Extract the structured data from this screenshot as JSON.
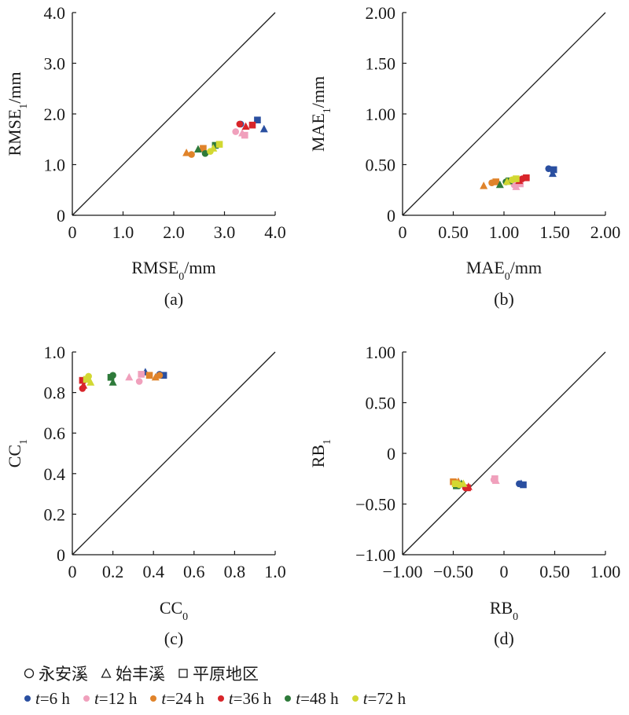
{
  "chart_data": [
    {
      "panel_label": "(a)",
      "type": "scatter",
      "xlabel": "RMSE",
      "xlabel_sub": "0",
      "xlabel_unit": "/mm",
      "ylabel": "RMSE",
      "ylabel_sub": "1",
      "ylabel_unit": "/mm",
      "xlim": [
        0,
        4
      ],
      "ylim": [
        0,
        4
      ],
      "xticks": [
        "0",
        "1.0",
        "2.0",
        "3.0",
        "4.0"
      ],
      "yticks": [
        "0",
        "1.0",
        "2.0",
        "3.0",
        "4.0"
      ],
      "diagonal": true,
      "points": [
        {
          "x": 3.32,
          "y": 1.8,
          "shape": "circle",
          "series": "t6"
        },
        {
          "x": 3.78,
          "y": 1.7,
          "shape": "triangle",
          "series": "t6"
        },
        {
          "x": 3.65,
          "y": 1.88,
          "shape": "square",
          "series": "t6"
        },
        {
          "x": 3.22,
          "y": 1.65,
          "shape": "circle",
          "series": "t12"
        },
        {
          "x": 3.35,
          "y": 1.62,
          "shape": "triangle",
          "series": "t12"
        },
        {
          "x": 3.4,
          "y": 1.58,
          "shape": "square",
          "series": "t12"
        },
        {
          "x": 2.35,
          "y": 1.2,
          "shape": "circle",
          "series": "t24"
        },
        {
          "x": 2.25,
          "y": 1.23,
          "shape": "triangle",
          "series": "t24"
        },
        {
          "x": 2.58,
          "y": 1.32,
          "shape": "square",
          "series": "t24"
        },
        {
          "x": 3.3,
          "y": 1.8,
          "shape": "circle",
          "series": "t36"
        },
        {
          "x": 3.42,
          "y": 1.75,
          "shape": "triangle",
          "series": "t36"
        },
        {
          "x": 3.55,
          "y": 1.78,
          "shape": "square",
          "series": "t36"
        },
        {
          "x": 2.62,
          "y": 1.22,
          "shape": "circle",
          "series": "t48"
        },
        {
          "x": 2.48,
          "y": 1.3,
          "shape": "triangle",
          "series": "t48"
        },
        {
          "x": 2.82,
          "y": 1.38,
          "shape": "square",
          "series": "t48"
        },
        {
          "x": 2.72,
          "y": 1.26,
          "shape": "circle",
          "series": "t72"
        },
        {
          "x": 2.78,
          "y": 1.32,
          "shape": "triangle",
          "series": "t72"
        },
        {
          "x": 2.9,
          "y": 1.4,
          "shape": "square",
          "series": "t72"
        }
      ]
    },
    {
      "panel_label": "(b)",
      "type": "scatter",
      "xlabel": "MAE",
      "xlabel_sub": "0",
      "xlabel_unit": "/mm",
      "ylabel": "MAE",
      "ylabel_sub": "1",
      "ylabel_unit": "/mm",
      "xlim": [
        0,
        2
      ],
      "ylim": [
        0,
        2
      ],
      "xticks": [
        "0",
        "0.50",
        "1.00",
        "1.50",
        "2.00"
      ],
      "yticks": [
        "0",
        "0.50",
        "1.00",
        "1.50",
        "2.00"
      ],
      "diagonal": true,
      "points": [
        {
          "x": 1.44,
          "y": 0.46,
          "shape": "circle",
          "series": "t6"
        },
        {
          "x": 1.48,
          "y": 0.41,
          "shape": "triangle",
          "series": "t6"
        },
        {
          "x": 1.49,
          "y": 0.45,
          "shape": "square",
          "series": "t6"
        },
        {
          "x": 1.1,
          "y": 0.3,
          "shape": "circle",
          "series": "t12"
        },
        {
          "x": 1.12,
          "y": 0.28,
          "shape": "triangle",
          "series": "t12"
        },
        {
          "x": 1.16,
          "y": 0.31,
          "shape": "square",
          "series": "t12"
        },
        {
          "x": 0.88,
          "y": 0.32,
          "shape": "circle",
          "series": "t24"
        },
        {
          "x": 0.8,
          "y": 0.29,
          "shape": "triangle",
          "series": "t24"
        },
        {
          "x": 0.92,
          "y": 0.33,
          "shape": "square",
          "series": "t24"
        },
        {
          "x": 1.18,
          "y": 0.36,
          "shape": "circle",
          "series": "t36"
        },
        {
          "x": 1.15,
          "y": 0.34,
          "shape": "triangle",
          "series": "t36"
        },
        {
          "x": 1.22,
          "y": 0.37,
          "shape": "square",
          "series": "t36"
        },
        {
          "x": 1.02,
          "y": 0.33,
          "shape": "circle",
          "series": "t48"
        },
        {
          "x": 0.96,
          "y": 0.3,
          "shape": "triangle",
          "series": "t48"
        },
        {
          "x": 1.05,
          "y": 0.34,
          "shape": "square",
          "series": "t48"
        },
        {
          "x": 1.08,
          "y": 0.35,
          "shape": "circle",
          "series": "t72"
        },
        {
          "x": 1.03,
          "y": 0.33,
          "shape": "triangle",
          "series": "t72"
        },
        {
          "x": 1.12,
          "y": 0.36,
          "shape": "square",
          "series": "t72"
        }
      ]
    },
    {
      "panel_label": "(c)",
      "type": "scatter",
      "xlabel": "CC",
      "xlabel_sub": "0",
      "xlabel_unit": "",
      "ylabel": "CC",
      "ylabel_sub": "1",
      "ylabel_unit": "",
      "xlim": [
        0,
        1
      ],
      "ylim": [
        0,
        1
      ],
      "xticks": [
        "0",
        "0.2",
        "0.4",
        "0.6",
        "0.8",
        "1.0"
      ],
      "yticks": [
        "0",
        "0.2",
        "0.4",
        "0.6",
        "0.8",
        "1.0"
      ],
      "diagonal": true,
      "points": [
        {
          "x": 0.43,
          "y": 0.89,
          "shape": "circle",
          "series": "t6"
        },
        {
          "x": 0.36,
          "y": 0.9,
          "shape": "triangle",
          "series": "t6"
        },
        {
          "x": 0.45,
          "y": 0.885,
          "shape": "square",
          "series": "t6"
        },
        {
          "x": 0.33,
          "y": 0.855,
          "shape": "circle",
          "series": "t12"
        },
        {
          "x": 0.28,
          "y": 0.875,
          "shape": "triangle",
          "series": "t12"
        },
        {
          "x": 0.34,
          "y": 0.89,
          "shape": "square",
          "series": "t12"
        },
        {
          "x": 0.43,
          "y": 0.885,
          "shape": "circle",
          "series": "t24"
        },
        {
          "x": 0.41,
          "y": 0.875,
          "shape": "triangle",
          "series": "t24"
        },
        {
          "x": 0.38,
          "y": 0.885,
          "shape": "square",
          "series": "t24"
        },
        {
          "x": 0.05,
          "y": 0.82,
          "shape": "circle",
          "series": "t36"
        },
        {
          "x": 0.055,
          "y": 0.835,
          "shape": "triangle",
          "series": "t36"
        },
        {
          "x": 0.05,
          "y": 0.86,
          "shape": "square",
          "series": "t36"
        },
        {
          "x": 0.2,
          "y": 0.885,
          "shape": "circle",
          "series": "t48"
        },
        {
          "x": 0.2,
          "y": 0.85,
          "shape": "triangle",
          "series": "t48"
        },
        {
          "x": 0.19,
          "y": 0.875,
          "shape": "square",
          "series": "t48"
        },
        {
          "x": 0.08,
          "y": 0.88,
          "shape": "circle",
          "series": "t72"
        },
        {
          "x": 0.09,
          "y": 0.85,
          "shape": "triangle",
          "series": "t72"
        },
        {
          "x": 0.07,
          "y": 0.865,
          "shape": "square",
          "series": "t72"
        }
      ]
    },
    {
      "panel_label": "(d)",
      "type": "scatter",
      "xlabel": "RB",
      "xlabel_sub": "0",
      "xlabel_unit": "",
      "ylabel": "RB",
      "ylabel_sub": "1",
      "ylabel_unit": "",
      "xlim": [
        -1,
        1
      ],
      "ylim": [
        -1,
        1
      ],
      "xticks": [
        "−1.00",
        "−0.50",
        "0",
        "0.50",
        "1.00"
      ],
      "yticks": [
        "−1.00",
        "−0.50",
        "0",
        "0.50",
        "1.00"
      ],
      "diagonal": true,
      "points": [
        {
          "x": 0.15,
          "y": -0.3,
          "shape": "circle",
          "series": "t6"
        },
        {
          "x": 0.17,
          "y": -0.3,
          "shape": "triangle",
          "series": "t6"
        },
        {
          "x": 0.19,
          "y": -0.31,
          "shape": "square",
          "series": "t6"
        },
        {
          "x": -0.1,
          "y": -0.26,
          "shape": "circle",
          "series": "t12"
        },
        {
          "x": -0.08,
          "y": -0.27,
          "shape": "triangle",
          "series": "t12"
        },
        {
          "x": -0.09,
          "y": -0.25,
          "shape": "square",
          "series": "t12"
        },
        {
          "x": -0.47,
          "y": -0.29,
          "shape": "circle",
          "series": "t24"
        },
        {
          "x": -0.45,
          "y": -0.28,
          "shape": "triangle",
          "series": "t24"
        },
        {
          "x": -0.5,
          "y": -0.28,
          "shape": "square",
          "series": "t24"
        },
        {
          "x": -0.38,
          "y": -0.34,
          "shape": "circle",
          "series": "t36"
        },
        {
          "x": -0.35,
          "y": -0.33,
          "shape": "triangle",
          "series": "t36"
        },
        {
          "x": -0.36,
          "y": -0.34,
          "shape": "square",
          "series": "t36"
        },
        {
          "x": -0.45,
          "y": -0.32,
          "shape": "circle",
          "series": "t48"
        },
        {
          "x": -0.42,
          "y": -0.3,
          "shape": "triangle",
          "series": "t48"
        },
        {
          "x": -0.47,
          "y": -0.32,
          "shape": "square",
          "series": "t48"
        },
        {
          "x": -0.44,
          "y": -0.31,
          "shape": "circle",
          "series": "t72"
        },
        {
          "x": -0.4,
          "y": -0.3,
          "shape": "triangle",
          "series": "t72"
        },
        {
          "x": -0.48,
          "y": -0.3,
          "shape": "square",
          "series": "t72"
        }
      ]
    }
  ],
  "legend": {
    "shapes": [
      {
        "shape": "circle",
        "label": "永安溪"
      },
      {
        "shape": "triangle",
        "label": "始丰溪"
      },
      {
        "shape": "square",
        "label": "平原地区"
      }
    ],
    "series": [
      {
        "id": "t6",
        "var": "t",
        "label": "=6 h",
        "color": "#2a4fa0"
      },
      {
        "id": "t12",
        "var": "t",
        "label": "=12 h",
        "color": "#f0a0bc"
      },
      {
        "id": "t24",
        "var": "t",
        "label": "=24 h",
        "color": "#e0832a"
      },
      {
        "id": "t36",
        "var": "t",
        "label": "=36 h",
        "color": "#d8252a"
      },
      {
        "id": "t48",
        "var": "t",
        "label": "=48 h",
        "color": "#2e7a3a"
      },
      {
        "id": "t72",
        "var": "t",
        "label": "=72 h",
        "color": "#d2d832"
      }
    ]
  }
}
